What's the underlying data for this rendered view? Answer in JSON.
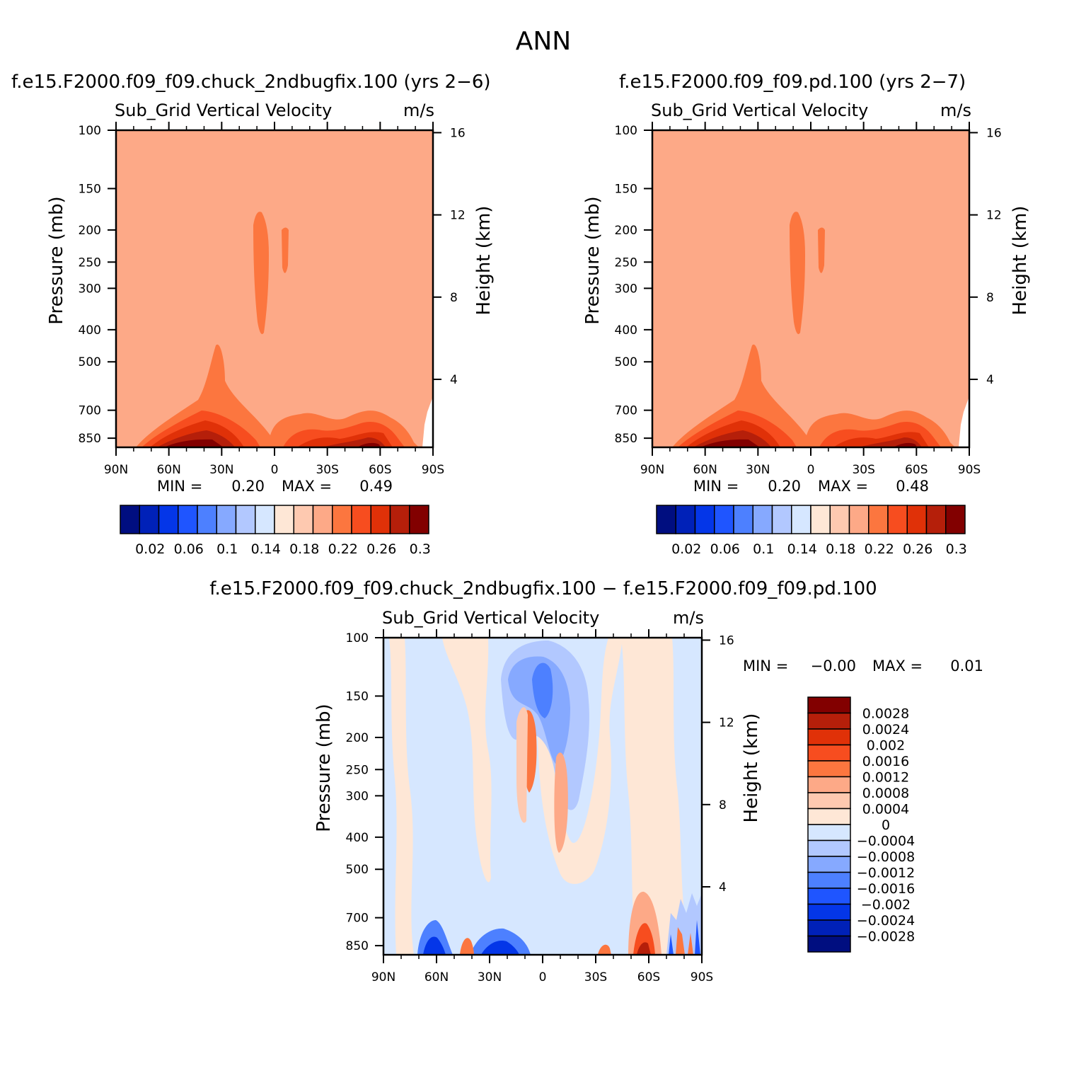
{
  "page_title": "ANN",
  "chart_data": [
    {
      "type": "heatmap",
      "case_title": "f.e15.F2000.f09_f09.chuck_2ndbugfix.100 (yrs 2−6)",
      "variable_title": "Sub_Grid Vertical Velocity",
      "units": "m/s",
      "ylabel": "Pressure (mb)",
      "right_ylabel": "Height (km)",
      "x_ticks": [
        "90N",
        "60N",
        "30N",
        "0",
        "30S",
        "60S",
        "90S"
      ],
      "y_ticks": [
        "100",
        "150",
        "200",
        "250",
        "300",
        "400",
        "500",
        "700",
        "850"
      ],
      "right_ticks": [
        "16",
        "12",
        "8",
        "4"
      ],
      "min_label": "MIN =",
      "min_value": "0.20",
      "max_label": "MAX =",
      "max_value": "0.49",
      "colorbar_labels": [
        "0.02",
        "0.06",
        "0.1",
        "0.14",
        "0.18",
        "0.22",
        "0.26",
        "0.3"
      ],
      "background_level": 0.2
    },
    {
      "type": "heatmap",
      "case_title": "f.e15.F2000.f09_f09.pd.100 (yrs 2−7)",
      "variable_title": "Sub_Grid Vertical Velocity",
      "units": "m/s",
      "ylabel": "Pressure (mb)",
      "right_ylabel": "Height (km)",
      "x_ticks": [
        "90N",
        "60N",
        "30N",
        "0",
        "30S",
        "60S",
        "90S"
      ],
      "y_ticks": [
        "100",
        "150",
        "200",
        "250",
        "300",
        "400",
        "500",
        "700",
        "850"
      ],
      "right_ticks": [
        "16",
        "12",
        "8",
        "4"
      ],
      "min_label": "MIN =",
      "min_value": "0.20",
      "max_label": "MAX =",
      "max_value": "0.48",
      "colorbar_labels": [
        "0.02",
        "0.06",
        "0.1",
        "0.14",
        "0.18",
        "0.22",
        "0.26",
        "0.3"
      ],
      "background_level": 0.2
    },
    {
      "type": "heatmap",
      "case_title": "f.e15.F2000.f09_f09.chuck_2ndbugfix.100 − f.e15.F2000.f09_f09.pd.100",
      "variable_title": "Sub_Grid Vertical Velocity",
      "units": "m/s",
      "ylabel": "Pressure (mb)",
      "right_ylabel": "Height (km)",
      "x_ticks": [
        "90N",
        "60N",
        "30N",
        "0",
        "30S",
        "60S",
        "90S"
      ],
      "y_ticks": [
        "100",
        "150",
        "200",
        "250",
        "300",
        "400",
        "500",
        "700",
        "850"
      ],
      "right_ticks": [
        "16",
        "12",
        "8",
        "4"
      ],
      "min_label": "MIN =",
      "min_value": "−0.00",
      "max_label": "MAX =",
      "max_value": "0.01",
      "colorbar_labels": [
        "0.0028",
        "0.0024",
        "0.002",
        "0.0016",
        "0.0012",
        "0.0008",
        "0.0004",
        "0",
        "−0.0004",
        "−0.0008",
        "−0.0012",
        "−0.0016",
        "−0.002",
        "−0.0024",
        "−0.0028"
      ]
    }
  ],
  "colors": {
    "blue_to_red": [
      "#000e80",
      "#0021b8",
      "#0436e8",
      "#1f55ff",
      "#4d80ff",
      "#86a9ff",
      "#b2c8ff",
      "#d6e7ff",
      "#fee7d6",
      "#fec9b0",
      "#fda987",
      "#fc763f",
      "#f74d1f",
      "#e03108",
      "#b51f0a",
      "#820000"
    ],
    "diff_scale": [
      "#820000",
      "#b51f0a",
      "#e03108",
      "#f74d1f",
      "#fc763f",
      "#fda987",
      "#fec9b0",
      "#fee7d6",
      "#d6e7ff",
      "#b2c8ff",
      "#86a9ff",
      "#4d80ff",
      "#1f55ff",
      "#0436e8",
      "#0021b8",
      "#000e80"
    ]
  }
}
